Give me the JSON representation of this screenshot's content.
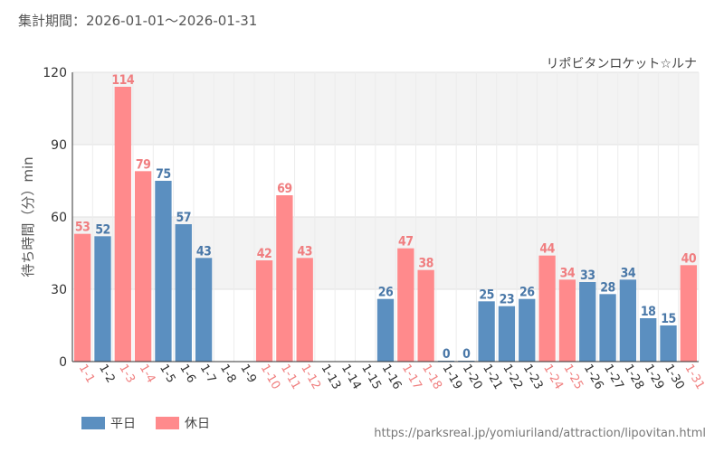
{
  "header": {
    "period": "集計期間：2026-01-01～2026-01-31"
  },
  "chart_data": {
    "type": "bar",
    "title": "リポビタンロケット☆ルナ",
    "ylabel": "待ち時間（分）min",
    "xlabel": "",
    "ylim": [
      0,
      120
    ],
    "yticks": [
      "0",
      "30",
      "60",
      "90",
      "120"
    ],
    "categories": [
      "1-1",
      "1-2",
      "1-3",
      "1-4",
      "1-5",
      "1-6",
      "1-7",
      "1-8",
      "1-9",
      "1-10",
      "1-11",
      "1-12",
      "1-13",
      "1-14",
      "1-15",
      "1-16",
      "1-17",
      "1-18",
      "1-19",
      "1-20",
      "1-21",
      "1-22",
      "1-23",
      "1-24",
      "1-25",
      "1-26",
      "1-27",
      "1-28",
      "1-29",
      "1-30",
      "1-31"
    ],
    "values": [
      53,
      52,
      114,
      79,
      75,
      57,
      43,
      null,
      null,
      42,
      69,
      43,
      null,
      null,
      null,
      26,
      47,
      38,
      0,
      0,
      25,
      23,
      26,
      44,
      34,
      33,
      28,
      34,
      18,
      15,
      40
    ],
    "day_type": [
      "holiday",
      "weekday",
      "holiday",
      "holiday",
      "weekday",
      "weekday",
      "weekday",
      "weekday",
      "weekday",
      "holiday",
      "holiday",
      "holiday",
      "weekday",
      "weekday",
      "weekday",
      "weekday",
      "holiday",
      "holiday",
      "weekday",
      "weekday",
      "weekday",
      "weekday",
      "weekday",
      "holiday",
      "holiday",
      "weekday",
      "weekday",
      "weekday",
      "weekday",
      "weekday",
      "holiday"
    ],
    "series": [
      {
        "name": "平日",
        "key": "weekday",
        "color": "#5b8fc0"
      },
      {
        "name": "休日",
        "key": "holiday",
        "color": "#ff8a8c"
      }
    ],
    "holiday_label_color": "#f08080",
    "weekday_label_color": "#333333",
    "weekday_value_color": "#4a78a8",
    "holiday_value_color": "#f07e80",
    "grid": true
  },
  "source": "https://parksreal.jp/yomiuriland/attraction/lipovitan.html"
}
